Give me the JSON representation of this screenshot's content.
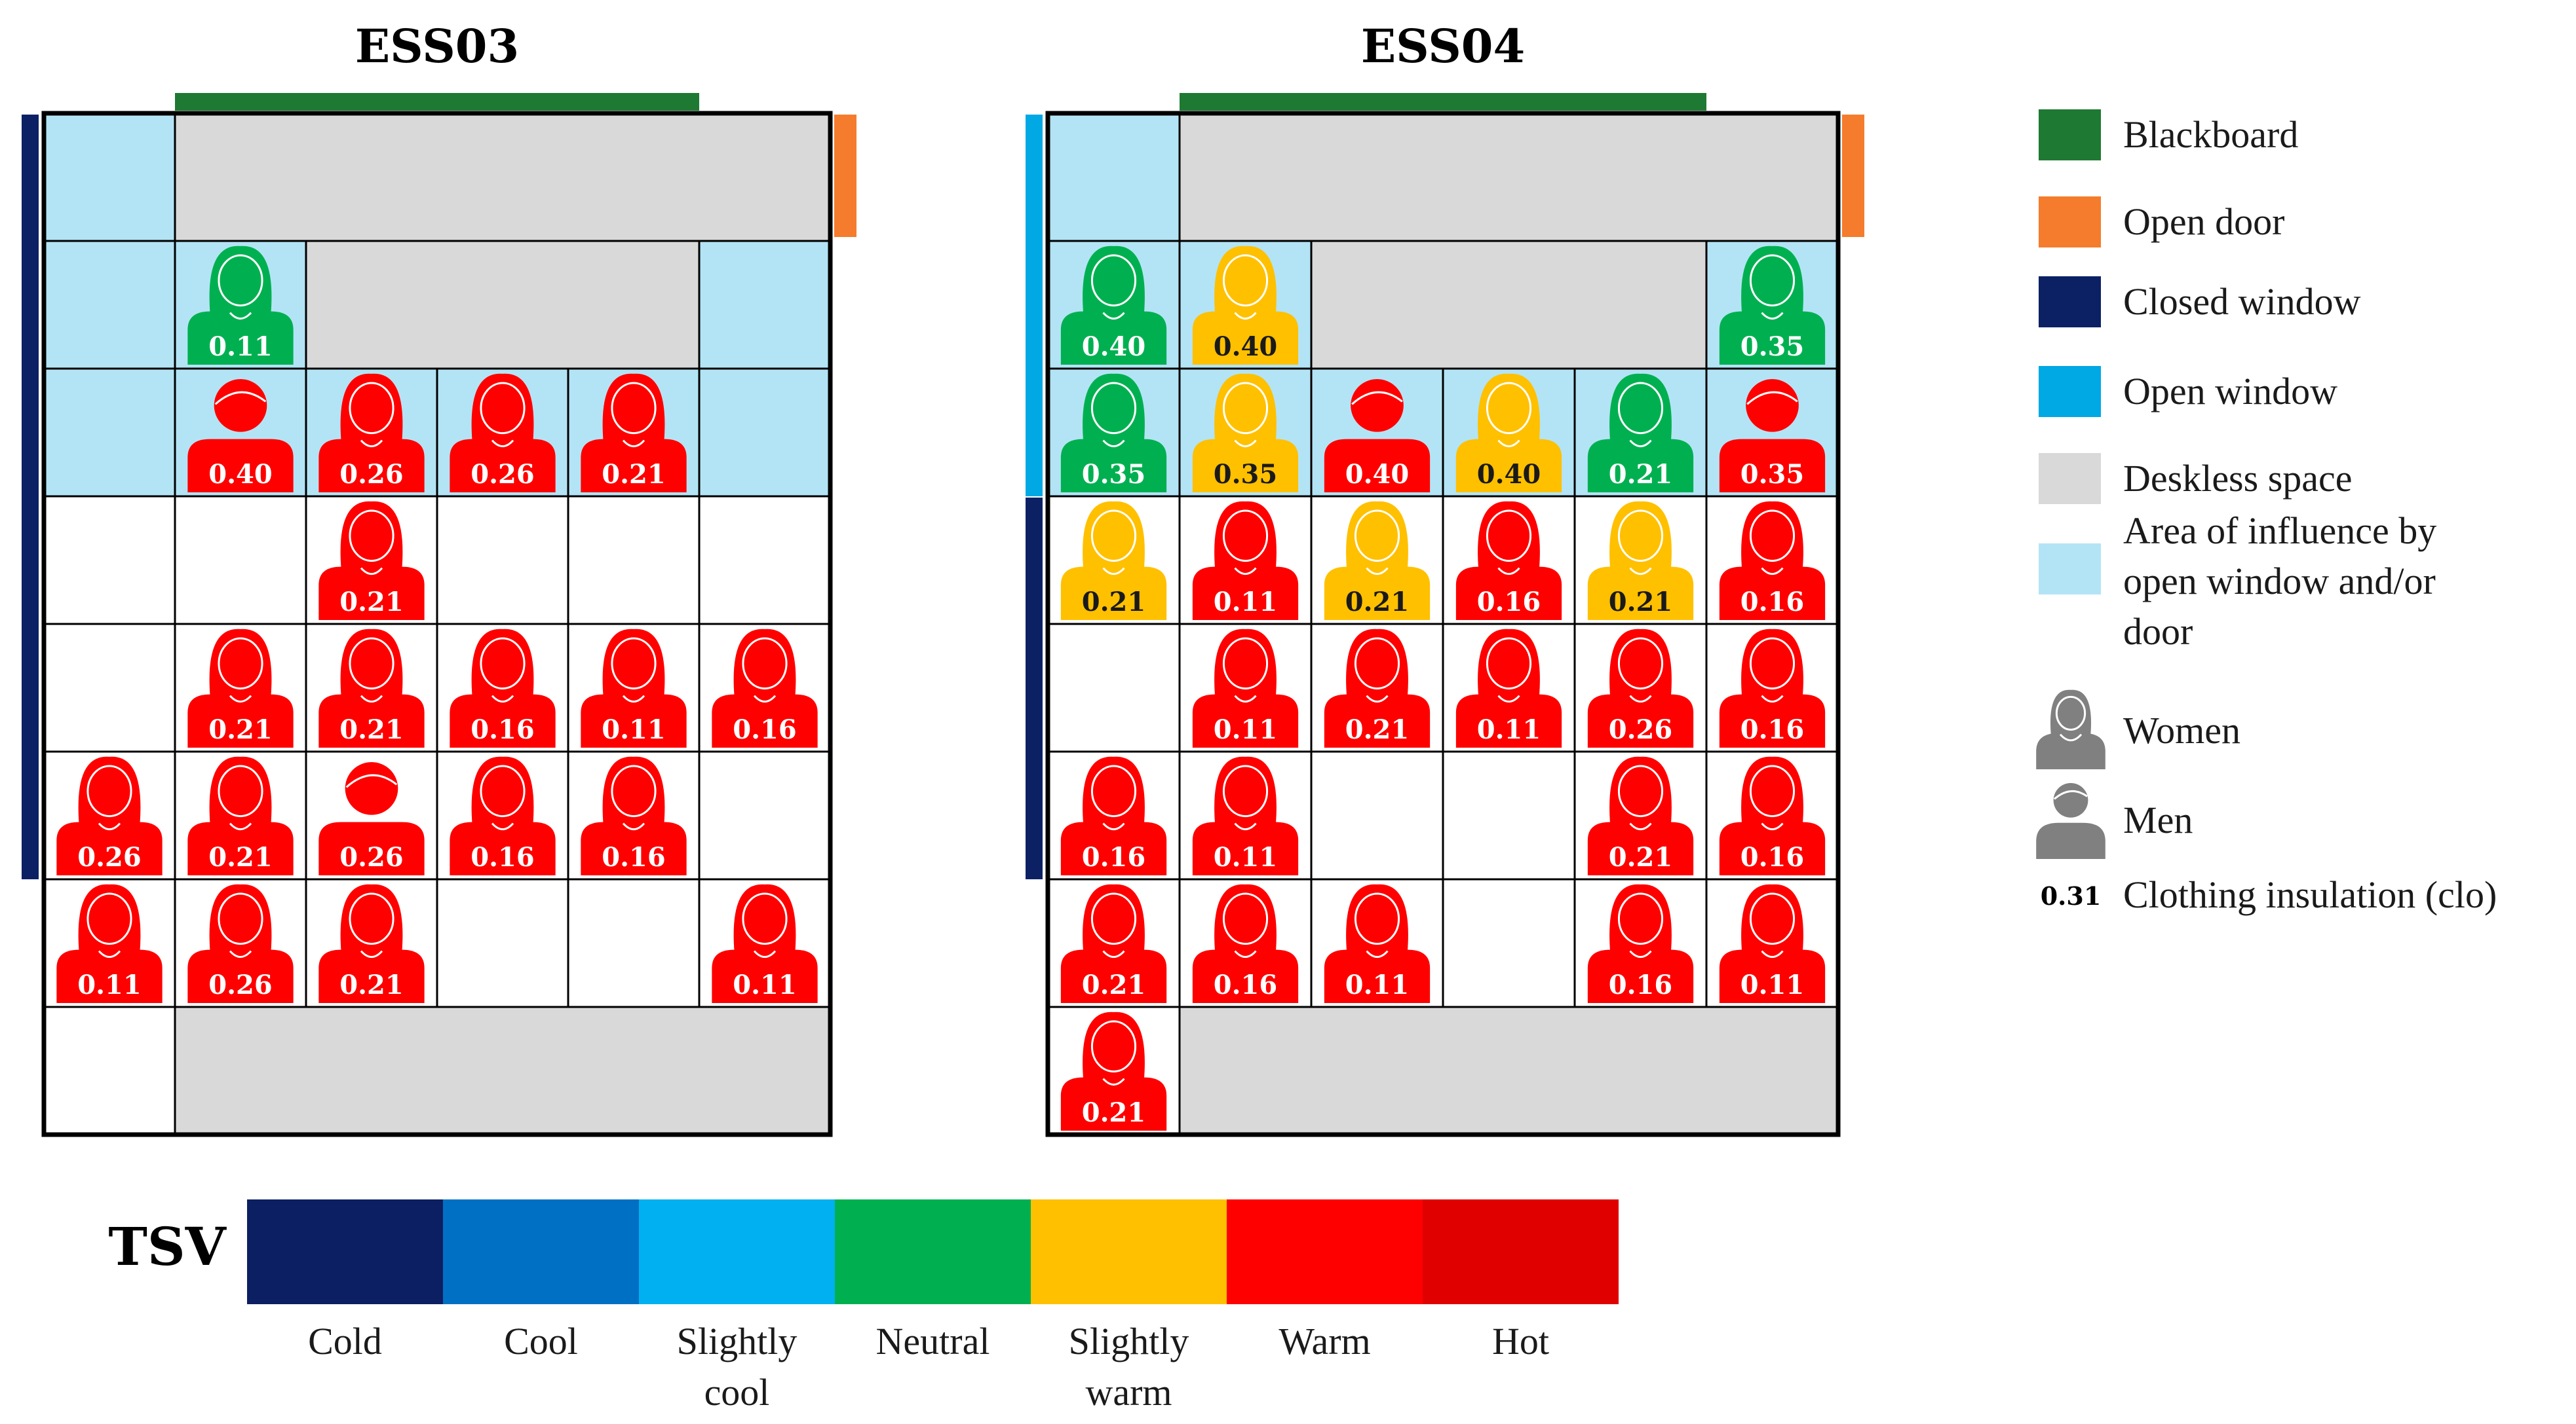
{
  "colors": {
    "blackboard": "#1e7a32",
    "open_door": "#f47c2c",
    "closed_window": "#0c2164",
    "open_window": "#00a8e4",
    "deskless": "#d9d9d9",
    "influence": "#b3e4f5",
    "neutral_gray": "#808080",
    "tsv": {
      "cold": "#0c1f62",
      "cool": "#0070c4",
      "slightly_cool": "#00b0f0",
      "neutral": "#00b050",
      "slightly_warm": "#ffc000",
      "warm": "#fe0000",
      "hot": "#e00000"
    }
  },
  "classrooms": [
    {
      "id": "ESS03",
      "title": "ESS03",
      "blackboard_cols": [
        1,
        4
      ],
      "door_side": "right",
      "door_rows": [
        0,
        0
      ],
      "windows": [
        {
          "side": "left",
          "type": "closed_window",
          "rows": [
            0,
            5
          ]
        }
      ],
      "deskless": [
        {
          "rows": [
            0,
            0
          ],
          "cols": [
            1,
            5
          ]
        },
        {
          "rows": [
            1,
            1
          ],
          "cols": [
            2,
            4
          ]
        },
        {
          "rows": [
            7,
            7
          ],
          "cols": [
            1,
            5
          ]
        }
      ],
      "influence": [
        {
          "rows": [
            0,
            0
          ],
          "cols": [
            0,
            0
          ]
        },
        {
          "rows": [
            1,
            1
          ],
          "cols": [
            0,
            1
          ]
        },
        {
          "rows": [
            1,
            1
          ],
          "cols": [
            5,
            5
          ]
        },
        {
          "rows": [
            2,
            2
          ],
          "cols": [
            0,
            5
          ]
        }
      ],
      "students": [
        {
          "row": 1,
          "col": 1,
          "gender": "women",
          "tsv": "neutral",
          "clo": "0.11"
        },
        {
          "row": 2,
          "col": 1,
          "gender": "men",
          "tsv": "warm",
          "clo": "0.40"
        },
        {
          "row": 2,
          "col": 2,
          "gender": "women",
          "tsv": "warm",
          "clo": "0.26"
        },
        {
          "row": 2,
          "col": 3,
          "gender": "women",
          "tsv": "warm",
          "clo": "0.26"
        },
        {
          "row": 2,
          "col": 4,
          "gender": "women",
          "tsv": "warm",
          "clo": "0.21"
        },
        {
          "row": 3,
          "col": 2,
          "gender": "women",
          "tsv": "warm",
          "clo": "0.21"
        },
        {
          "row": 4,
          "col": 1,
          "gender": "women",
          "tsv": "warm",
          "clo": "0.21"
        },
        {
          "row": 4,
          "col": 2,
          "gender": "women",
          "tsv": "warm",
          "clo": "0.21"
        },
        {
          "row": 4,
          "col": 3,
          "gender": "women",
          "tsv": "warm",
          "clo": "0.16"
        },
        {
          "row": 4,
          "col": 4,
          "gender": "women",
          "tsv": "warm",
          "clo": "0.11"
        },
        {
          "row": 4,
          "col": 5,
          "gender": "women",
          "tsv": "warm",
          "clo": "0.16"
        },
        {
          "row": 5,
          "col": 0,
          "gender": "women",
          "tsv": "warm",
          "clo": "0.26"
        },
        {
          "row": 5,
          "col": 1,
          "gender": "women",
          "tsv": "warm",
          "clo": "0.21"
        },
        {
          "row": 5,
          "col": 2,
          "gender": "men",
          "tsv": "warm",
          "clo": "0.26"
        },
        {
          "row": 5,
          "col": 3,
          "gender": "women",
          "tsv": "warm",
          "clo": "0.16"
        },
        {
          "row": 5,
          "col": 4,
          "gender": "women",
          "tsv": "warm",
          "clo": "0.16"
        },
        {
          "row": 6,
          "col": 0,
          "gender": "women",
          "tsv": "warm",
          "clo": "0.11"
        },
        {
          "row": 6,
          "col": 1,
          "gender": "women",
          "tsv": "warm",
          "clo": "0.26"
        },
        {
          "row": 6,
          "col": 2,
          "gender": "women",
          "tsv": "warm",
          "clo": "0.21"
        },
        {
          "row": 6,
          "col": 5,
          "gender": "women",
          "tsv": "warm",
          "clo": "0.11"
        }
      ]
    },
    {
      "id": "ESS04",
      "title": "ESS04",
      "blackboard_cols": [
        1,
        4
      ],
      "door_side": "right",
      "door_rows": [
        0,
        0
      ],
      "windows": [
        {
          "side": "left",
          "type": "open_window",
          "rows": [
            0,
            2
          ]
        },
        {
          "side": "left",
          "type": "closed_window",
          "rows": [
            3,
            5
          ]
        }
      ],
      "deskless": [
        {
          "rows": [
            0,
            0
          ],
          "cols": [
            1,
            5
          ]
        },
        {
          "rows": [
            1,
            1
          ],
          "cols": [
            2,
            4
          ]
        },
        {
          "rows": [
            7,
            7
          ],
          "cols": [
            1,
            5
          ]
        }
      ],
      "influence": [
        {
          "rows": [
            0,
            0
          ],
          "cols": [
            0,
            0
          ]
        },
        {
          "rows": [
            1,
            1
          ],
          "cols": [
            0,
            1
          ]
        },
        {
          "rows": [
            1,
            1
          ],
          "cols": [
            5,
            5
          ]
        },
        {
          "rows": [
            2,
            2
          ],
          "cols": [
            0,
            5
          ]
        }
      ],
      "students": [
        {
          "row": 1,
          "col": 0,
          "gender": "women",
          "tsv": "neutral",
          "clo": "0.40"
        },
        {
          "row": 1,
          "col": 1,
          "gender": "women",
          "tsv": "slightly_warm",
          "clo": "0.40"
        },
        {
          "row": 1,
          "col": 5,
          "gender": "women",
          "tsv": "neutral",
          "clo": "0.35"
        },
        {
          "row": 2,
          "col": 0,
          "gender": "women",
          "tsv": "neutral",
          "clo": "0.35"
        },
        {
          "row": 2,
          "col": 1,
          "gender": "women",
          "tsv": "slightly_warm",
          "clo": "0.35"
        },
        {
          "row": 2,
          "col": 2,
          "gender": "men",
          "tsv": "warm",
          "clo": "0.40"
        },
        {
          "row": 2,
          "col": 3,
          "gender": "women",
          "tsv": "slightly_warm",
          "clo": "0.40"
        },
        {
          "row": 2,
          "col": 4,
          "gender": "women",
          "tsv": "neutral",
          "clo": "0.21"
        },
        {
          "row": 2,
          "col": 5,
          "gender": "men",
          "tsv": "warm",
          "clo": "0.35"
        },
        {
          "row": 3,
          "col": 0,
          "gender": "women",
          "tsv": "slightly_warm",
          "clo": "0.21"
        },
        {
          "row": 3,
          "col": 1,
          "gender": "women",
          "tsv": "warm",
          "clo": "0.11"
        },
        {
          "row": 3,
          "col": 2,
          "gender": "women",
          "tsv": "slightly_warm",
          "clo": "0.21"
        },
        {
          "row": 3,
          "col": 3,
          "gender": "women",
          "tsv": "warm",
          "clo": "0.16"
        },
        {
          "row": 3,
          "col": 4,
          "gender": "women",
          "tsv": "slightly_warm",
          "clo": "0.21"
        },
        {
          "row": 3,
          "col": 5,
          "gender": "women",
          "tsv": "warm",
          "clo": "0.16"
        },
        {
          "row": 4,
          "col": 1,
          "gender": "women",
          "tsv": "warm",
          "clo": "0.11"
        },
        {
          "row": 4,
          "col": 2,
          "gender": "women",
          "tsv": "warm",
          "clo": "0.21"
        },
        {
          "row": 4,
          "col": 3,
          "gender": "women",
          "tsv": "warm",
          "clo": "0.11"
        },
        {
          "row": 4,
          "col": 4,
          "gender": "women",
          "tsv": "warm",
          "clo": "0.26"
        },
        {
          "row": 4,
          "col": 5,
          "gender": "women",
          "tsv": "warm",
          "clo": "0.16"
        },
        {
          "row": 5,
          "col": 0,
          "gender": "women",
          "tsv": "warm",
          "clo": "0.16"
        },
        {
          "row": 5,
          "col": 1,
          "gender": "women",
          "tsv": "warm",
          "clo": "0.11"
        },
        {
          "row": 5,
          "col": 4,
          "gender": "women",
          "tsv": "warm",
          "clo": "0.21"
        },
        {
          "row": 5,
          "col": 5,
          "gender": "women",
          "tsv": "warm",
          "clo": "0.16"
        },
        {
          "row": 6,
          "col": 0,
          "gender": "women",
          "tsv": "warm",
          "clo": "0.21"
        },
        {
          "row": 6,
          "col": 1,
          "gender": "women",
          "tsv": "warm",
          "clo": "0.16"
        },
        {
          "row": 6,
          "col": 2,
          "gender": "women",
          "tsv": "warm",
          "clo": "0.11"
        },
        {
          "row": 6,
          "col": 4,
          "gender": "women",
          "tsv": "warm",
          "clo": "0.16"
        },
        {
          "row": 6,
          "col": 5,
          "gender": "women",
          "tsv": "warm",
          "clo": "0.11"
        },
        {
          "row": 7,
          "col": 0,
          "gender": "women",
          "tsv": "warm",
          "clo": "0.21"
        }
      ]
    }
  ],
  "legend": {
    "items": [
      {
        "key": "blackboard",
        "label": "Blackboard",
        "kind": "swatch"
      },
      {
        "key": "open_door",
        "label": "Open door",
        "kind": "swatch"
      },
      {
        "key": "closed_window",
        "label": "Closed window",
        "kind": "swatch"
      },
      {
        "key": "open_window",
        "label": "Open window",
        "kind": "swatch"
      },
      {
        "key": "deskless",
        "label": "Deskless space",
        "kind": "swatch"
      },
      {
        "key": "influence",
        "label": "Area of influence by open window and/or door",
        "kind": "swatch"
      },
      {
        "key": "women",
        "label": "Women",
        "kind": "women"
      },
      {
        "key": "men",
        "label": "Men",
        "kind": "men"
      },
      {
        "key": "clo",
        "label": "Clothing insulation (clo)",
        "kind": "text",
        "example": "0.31"
      }
    ]
  },
  "tsv_scale": {
    "label": "TSV",
    "categories": [
      {
        "key": "cold",
        "label": "Cold"
      },
      {
        "key": "cool",
        "label": "Cool"
      },
      {
        "key": "slightly_cool",
        "label": "Slightly cool"
      },
      {
        "key": "neutral",
        "label": "Neutral"
      },
      {
        "key": "slightly_warm",
        "label": "Slightly warm"
      },
      {
        "key": "warm",
        "label": "Warm"
      },
      {
        "key": "hot",
        "label": "Hot"
      }
    ]
  }
}
